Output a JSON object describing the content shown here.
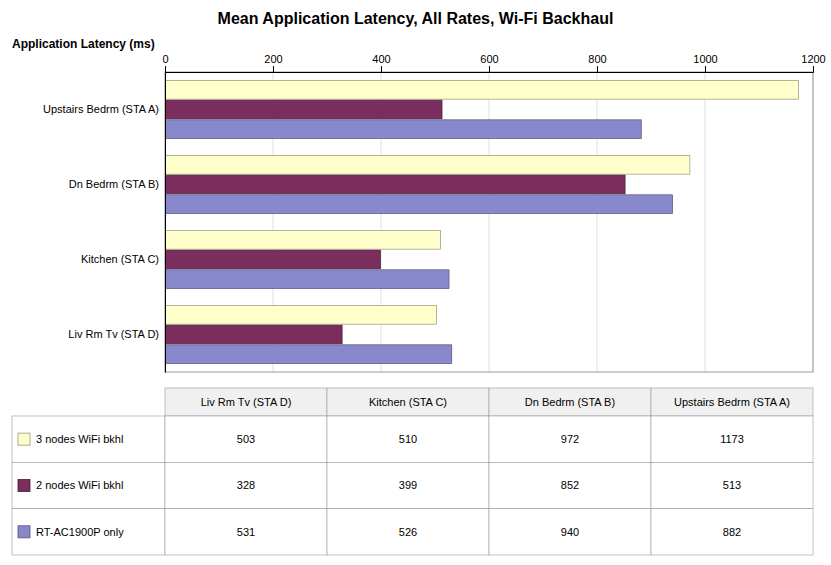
{
  "chart_data": {
    "type": "bar",
    "orientation": "horizontal",
    "title": "Mean Application Latency, All Rates, Wi-Fi Backhaul",
    "xlabel": "Application Latency (ms)",
    "categories": [
      "Upstairs Bedrm (STA A)",
      "Dn Bedrm (STA B)",
      "Kitchen (STA C)",
      "Liv Rm Tv (STA D)"
    ],
    "series": [
      {
        "name": "3 nodes WiFi bkhl",
        "color": "#FFFFCC",
        "values": [
          1173,
          972,
          510,
          503
        ]
      },
      {
        "name": "2 nodes WiFi bkhl",
        "color": "#7B2D5E",
        "values": [
          513,
          852,
          399,
          328
        ]
      },
      {
        "name": "RT-AC1900P only",
        "color": "#8888CC",
        "values": [
          882,
          940,
          526,
          531
        ]
      }
    ],
    "xlim": [
      0,
      1200
    ],
    "xticks": [
      0,
      200,
      400,
      600,
      800,
      1000,
      1200
    ],
    "grid": true,
    "table": {
      "columns": [
        "Liv Rm Tv (STA D)",
        "Kitchen (STA C)",
        "Dn Bedrm (STA B)",
        "Upstairs Bedrm (STA A)"
      ],
      "rows": [
        "3 nodes WiFi bkhl",
        "2 nodes WiFi bkhl",
        "RT-AC1900P only"
      ],
      "values": [
        [
          503,
          510,
          972,
          1173
        ],
        [
          328,
          399,
          852,
          513
        ],
        [
          531,
          526,
          940,
          882
        ]
      ]
    }
  }
}
